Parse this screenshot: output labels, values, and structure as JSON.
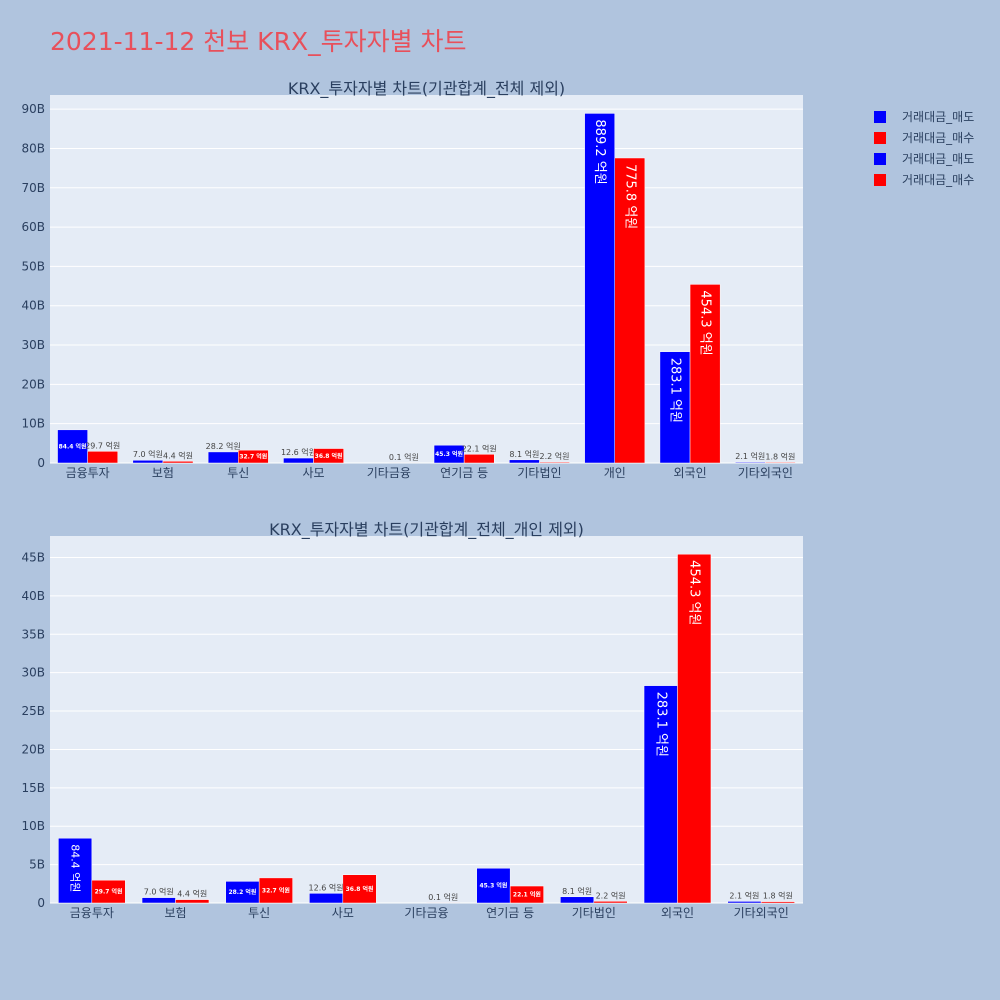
{
  "title": "2021-11-12 천보 KRX_투자자별 차트",
  "legend": [
    {
      "label": "거래대금_매도",
      "color": "#0000ff"
    },
    {
      "label": "거래대금_매수",
      "color": "#ff0000"
    },
    {
      "label": "거래대금_매도",
      "color": "#0000ff"
    },
    {
      "label": "거래대금_매수",
      "color": "#ff0000"
    }
  ],
  "chart_data": [
    {
      "type": "bar",
      "title": "KRX_투자자별 차트(기관합계_전체 제외)",
      "categories": [
        "금융투자",
        "보험",
        "투신",
        "사모",
        "기타금융",
        "연기금 등",
        "기타법인",
        "개인",
        "외국인",
        "기타외국인"
      ],
      "series": [
        {
          "name": "거래대금_매도",
          "color": "#0000ff",
          "values": [
            8.44,
            0.7,
            2.82,
            1.26,
            0.0,
            4.53,
            0.81,
            88.92,
            28.31,
            0.21
          ],
          "labels": [
            "84.4 억원",
            "7.0 억원",
            "28.2 억원",
            "12.6 억원",
            "",
            "45.3 억원",
            "8.1 억원",
            "889.2 억원",
            "283.1 억원",
            "2.1 억원"
          ]
        },
        {
          "name": "거래대금_매수",
          "color": "#ff0000",
          "values": [
            2.97,
            0.44,
            3.27,
            3.68,
            0.01,
            2.21,
            0.22,
            77.58,
            45.43,
            0.18
          ],
          "labels": [
            "29.7 억원",
            "4.4 억원",
            "32.7 억원",
            "36.8 억원",
            "0.1 억원",
            "22.1 억원",
            "2.2 억원",
            "775.8 억원",
            "454.3 억원",
            "1.8 억원"
          ]
        }
      ],
      "yticks": [
        "0",
        "10B",
        "20B",
        "30B",
        "40B",
        "50B",
        "60B",
        "70B",
        "80B",
        "90B"
      ],
      "ytick_values": [
        0,
        10,
        20,
        30,
        40,
        50,
        60,
        70,
        80,
        90
      ],
      "ylim": [
        0,
        93.6
      ],
      "ylabel_unit": "B"
    },
    {
      "type": "bar",
      "title": "KRX_투자자별 차트(기관합계_전체_개인 제외)",
      "categories": [
        "금융투자",
        "보험",
        "투신",
        "사모",
        "기타금융",
        "연기금 등",
        "기타법인",
        "외국인",
        "기타외국인"
      ],
      "series": [
        {
          "name": "거래대금_매도",
          "color": "#0000ff",
          "values": [
            8.44,
            0.7,
            2.82,
            1.26,
            0.0,
            4.53,
            0.81,
            28.31,
            0.21
          ],
          "labels": [
            "84.4 억원",
            "7.0 억원",
            "28.2 억원",
            "12.6 억원",
            "",
            "45.3 억원",
            "8.1 억원",
            "283.1 억원",
            "2.1 억원"
          ]
        },
        {
          "name": "거래대금_매수",
          "color": "#ff0000",
          "values": [
            2.97,
            0.44,
            3.27,
            3.68,
            0.01,
            2.21,
            0.22,
            45.43,
            0.18
          ],
          "labels": [
            "29.7 억원",
            "4.4 억원",
            "32.7 억원",
            "36.8 억원",
            "0.1 억원",
            "22.1 억원",
            "2.2 억원",
            "454.3 억원",
            "1.8 억원"
          ]
        }
      ],
      "yticks": [
        "0",
        "5B",
        "10B",
        "15B",
        "20B",
        "25B",
        "30B",
        "35B",
        "40B",
        "45B"
      ],
      "ytick_values": [
        0,
        5,
        10,
        15,
        20,
        25,
        30,
        35,
        40,
        45
      ],
      "ylim": [
        0,
        47.8
      ],
      "ylabel_unit": "B"
    }
  ]
}
